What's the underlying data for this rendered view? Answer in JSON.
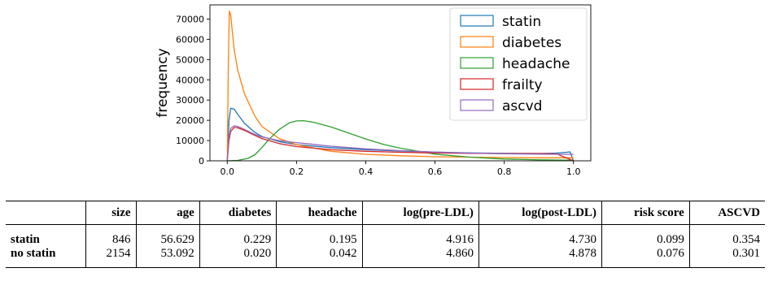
{
  "chart_data": {
    "type": "line",
    "ylabel": "frequency",
    "xlabel": "",
    "xlim": [
      -0.05,
      1.05
    ],
    "ylim": [
      0,
      77000
    ],
    "xticks": [
      0.0,
      0.2,
      0.4,
      0.6,
      0.8,
      1.0
    ],
    "xtick_labels": [
      "0.0",
      "0.2",
      "0.4",
      "0.6",
      "0.8",
      "1.0"
    ],
    "yticks": [
      0,
      10000,
      20000,
      30000,
      40000,
      50000,
      60000,
      70000
    ],
    "ytick_labels": [
      "0",
      "10000",
      "20000",
      "30000",
      "40000",
      "50000",
      "60000",
      "70000"
    ],
    "grid": false,
    "legend_position": "upper-right",
    "series": [
      {
        "name": "statin",
        "color": "#1f77b4",
        "x": [
          0.0,
          0.005,
          0.01,
          0.02,
          0.03,
          0.05,
          0.08,
          0.1,
          0.15,
          0.2,
          0.3,
          0.4,
          0.5,
          0.6,
          0.7,
          0.8,
          0.9,
          0.95,
          0.98,
          0.99,
          1.0
        ],
        "y": [
          0,
          20000,
          26000,
          25500,
          23000,
          18500,
          14000,
          12000,
          9500,
          8000,
          6500,
          5500,
          4800,
          4300,
          3900,
          3700,
          3600,
          3800,
          4200,
          4400,
          0
        ]
      },
      {
        "name": "diabetes",
        "color": "#ff7f0e",
        "x": [
          0.0,
          0.003,
          0.006,
          0.01,
          0.015,
          0.02,
          0.03,
          0.05,
          0.08,
          0.1,
          0.15,
          0.2,
          0.3,
          0.4,
          0.5,
          0.6,
          0.7,
          0.8,
          0.9,
          1.0
        ],
        "y": [
          0,
          45000,
          74000,
          72000,
          63000,
          55000,
          45000,
          33000,
          22000,
          17000,
          11000,
          8000,
          4700,
          3200,
          2500,
          2000,
          1800,
          1600,
          1500,
          1500
        ]
      },
      {
        "name": "headache",
        "color": "#2ca02c",
        "x": [
          0.0,
          0.03,
          0.06,
          0.08,
          0.1,
          0.12,
          0.15,
          0.18,
          0.2,
          0.22,
          0.25,
          0.3,
          0.35,
          0.4,
          0.45,
          0.5,
          0.6,
          0.7,
          0.8,
          0.9,
          1.0
        ],
        "y": [
          0,
          200,
          1200,
          3000,
          6500,
          10500,
          15500,
          18800,
          19700,
          19800,
          19000,
          16700,
          13700,
          10800,
          8200,
          6200,
          3300,
          1800,
          900,
          500,
          300
        ]
      },
      {
        "name": "frailty",
        "color": "#d62728",
        "x": [
          0.0,
          0.005,
          0.01,
          0.02,
          0.03,
          0.05,
          0.08,
          0.1,
          0.15,
          0.2,
          0.3,
          0.4,
          0.5,
          0.6,
          0.7,
          0.8,
          0.9,
          0.95,
          1.0
        ],
        "y": [
          0,
          10000,
          14500,
          16500,
          16300,
          15000,
          12500,
          11000,
          8500,
          7000,
          5500,
          4700,
          4200,
          3900,
          3700,
          3600,
          3600,
          3500,
          0
        ]
      },
      {
        "name": "ascvd",
        "color": "#9467bd",
        "x": [
          0.0,
          0.005,
          0.01,
          0.02,
          0.03,
          0.05,
          0.08,
          0.1,
          0.15,
          0.2,
          0.3,
          0.4,
          0.5,
          0.6,
          0.7,
          0.8,
          0.9,
          1.0
        ],
        "y": [
          0,
          12000,
          16000,
          17300,
          17000,
          15500,
          13000,
          11800,
          10000,
          9000,
          7200,
          5900,
          5000,
          4300,
          3800,
          3500,
          3300,
          3200
        ]
      }
    ]
  },
  "table": {
    "headers": [
      "",
      "size",
      "age",
      "diabetes",
      "headache",
      "log(pre-LDL)",
      "log(post-LDL)",
      "risk score",
      "ASCVD"
    ],
    "rows": [
      [
        "statin",
        "846",
        "56.629",
        "0.229",
        "0.195",
        "4.916",
        "4.730",
        "0.099",
        "0.354"
      ],
      [
        "no statin",
        "2154",
        "53.092",
        "0.020",
        "0.042",
        "4.860",
        "4.878",
        "0.076",
        "0.301"
      ]
    ]
  }
}
